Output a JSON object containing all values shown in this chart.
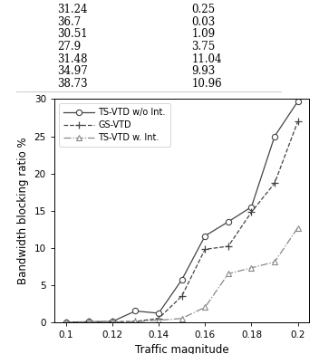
{
  "table_rows": [
    [
      "31.24",
      "0.25"
    ],
    [
      "36.7",
      "0.03"
    ],
    [
      "30.51",
      "1.09"
    ],
    [
      "27.9",
      "3.75"
    ],
    [
      "31.48",
      "11.04"
    ],
    [
      "34.97",
      "9.93"
    ],
    [
      "38.73",
      "10.96"
    ]
  ],
  "x": [
    0.1,
    0.11,
    0.12,
    0.13,
    0.14,
    0.15,
    0.16,
    0.17,
    0.18,
    0.19,
    0.2
  ],
  "ts_vtd_wo": [
    0.0,
    0.05,
    0.08,
    1.5,
    1.2,
    5.7,
    11.6,
    13.5,
    15.5,
    25.0,
    29.7
  ],
  "gs_vtd": [
    0.0,
    0.05,
    0.05,
    0.1,
    0.5,
    3.5,
    9.8,
    10.2,
    14.8,
    18.7,
    27.0
  ],
  "ts_vtd_w": [
    0.0,
    0.02,
    0.02,
    0.05,
    0.25,
    0.5,
    2.0,
    6.5,
    7.3,
    8.1,
    12.7
  ],
  "xlim": [
    0.095,
    0.205
  ],
  "ylim": [
    0,
    30
  ],
  "xticks": [
    0.1,
    0.12,
    0.14,
    0.16,
    0.18,
    0.2
  ],
  "yticks": [
    0,
    5,
    10,
    15,
    20,
    25,
    30
  ],
  "xlabel": "Traffic magnitude",
  "ylabel": "Bandwidth blocking ratio %",
  "legend_labels": [
    "TS-VTD w/o Int.",
    "GS-VTD",
    "TS-VTD w. Int."
  ]
}
